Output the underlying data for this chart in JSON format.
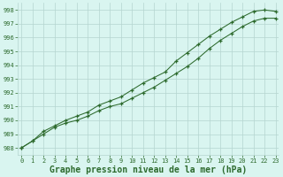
{
  "title": "Graphe pression niveau de la mer (hPa)",
  "x_values": [
    0,
    1,
    2,
    3,
    4,
    5,
    6,
    7,
    8,
    9,
    10,
    11,
    12,
    13,
    14,
    15,
    16,
    17,
    18,
    19,
    20,
    21,
    22,
    23
  ],
  "line1": [
    988.0,
    988.5,
    989.2,
    989.6,
    990.0,
    990.3,
    990.6,
    991.1,
    991.4,
    991.7,
    992.2,
    992.7,
    993.1,
    993.5,
    994.3,
    994.9,
    995.5,
    996.1,
    996.6,
    997.1,
    997.5,
    997.9,
    998.0,
    997.9
  ],
  "line2": [
    988.0,
    988.5,
    989.0,
    989.5,
    989.8,
    990.0,
    990.3,
    990.7,
    991.0,
    991.2,
    991.6,
    992.0,
    992.4,
    992.9,
    993.4,
    993.9,
    994.5,
    995.2,
    995.8,
    996.3,
    996.8,
    997.2,
    997.4,
    997.4
  ],
  "ylim": [
    987.5,
    998.5
  ],
  "yticks": [
    988,
    989,
    990,
    991,
    992,
    993,
    994,
    995,
    996,
    997,
    998
  ],
  "xticks": [
    0,
    1,
    2,
    3,
    4,
    5,
    6,
    7,
    8,
    9,
    10,
    11,
    12,
    13,
    14,
    15,
    16,
    17,
    18,
    19,
    20,
    21,
    22,
    23
  ],
  "line_color": "#2d6a2d",
  "bg_color": "#d9f5f0",
  "grid_color": "#b5d5d0",
  "text_color": "#2d6a2d",
  "marker": "+",
  "marker_size": 3.5,
  "line_width": 0.75,
  "title_fontsize": 7.0,
  "tick_fontsize": 5.0,
  "figsize": [
    3.2,
    2.0
  ],
  "dpi": 100
}
